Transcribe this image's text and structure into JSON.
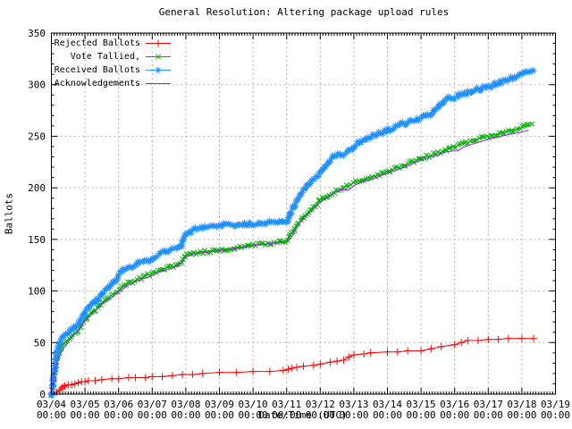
{
  "chart_data": {
    "type": "line",
    "title": "General Resolution: Altering package upload rules",
    "xlabel": "Date/Time (UTC)",
    "ylabel": "Ballots",
    "ylim": [
      0,
      350
    ],
    "y_major_ticks": [
      0,
      50,
      100,
      150,
      200,
      250,
      300,
      350
    ],
    "y_minor_step": 10,
    "x_days_range": [
      0,
      15
    ],
    "x_minor_ticks_per_day": 12,
    "grid": "dashed-gray",
    "legend_position": "top-left-inside",
    "colors": {
      "background": "#ffffff",
      "axis": "#000000",
      "grid": "#b0b0b0"
    },
    "x_ticks": [
      {
        "date": "03/04",
        "time": "00:00"
      },
      {
        "date": "03/05",
        "time": "00:00"
      },
      {
        "date": "03/06",
        "time": "00:00"
      },
      {
        "date": "03/07",
        "time": "00:00"
      },
      {
        "date": "03/08",
        "time": "00:00"
      },
      {
        "date": "03/09",
        "time": "00:00"
      },
      {
        "date": "03/10",
        "time": "00:00"
      },
      {
        "date": "03/11",
        "time": "00:00"
      },
      {
        "date": "03/12",
        "time": "00:00"
      },
      {
        "date": "03/13",
        "time": "00:00"
      },
      {
        "date": "03/14",
        "time": "00:00"
      },
      {
        "date": "03/15",
        "time": "00:00"
      },
      {
        "date": "03/16",
        "time": "00:00"
      },
      {
        "date": "03/17",
        "time": "00:00"
      },
      {
        "date": "03/18",
        "time": "00:00"
      },
      {
        "date": "03/19",
        "time": "00:00"
      }
    ],
    "series": [
      {
        "name": "Rejected Ballots",
        "color": "#ff0000",
        "marker": "plus",
        "dense_markers": false,
        "points": [
          [
            0,
            0
          ],
          [
            0.15,
            2
          ],
          [
            0.25,
            4
          ],
          [
            0.3,
            6
          ],
          [
            0.35,
            7
          ],
          [
            0.4,
            8
          ],
          [
            0.5,
            9
          ],
          [
            0.6,
            9
          ],
          [
            0.7,
            10
          ],
          [
            0.8,
            11
          ],
          [
            0.9,
            12
          ],
          [
            1.0,
            12
          ],
          [
            1.1,
            13
          ],
          [
            1.3,
            13
          ],
          [
            1.5,
            14
          ],
          [
            1.8,
            15
          ],
          [
            2.0,
            15
          ],
          [
            2.3,
            16
          ],
          [
            2.5,
            16
          ],
          [
            2.8,
            16
          ],
          [
            3.0,
            17
          ],
          [
            3.3,
            17
          ],
          [
            3.6,
            18
          ],
          [
            3.9,
            19
          ],
          [
            4.2,
            19
          ],
          [
            4.5,
            20
          ],
          [
            5.0,
            21
          ],
          [
            5.5,
            21
          ],
          [
            6.0,
            22
          ],
          [
            6.5,
            22
          ],
          [
            6.9,
            23
          ],
          [
            7.05,
            24
          ],
          [
            7.15,
            25
          ],
          [
            7.3,
            26
          ],
          [
            7.5,
            27
          ],
          [
            7.8,
            28
          ],
          [
            8.0,
            29
          ],
          [
            8.3,
            31
          ],
          [
            8.5,
            32
          ],
          [
            8.7,
            33
          ],
          [
            8.85,
            36
          ],
          [
            9.0,
            38
          ],
          [
            9.3,
            39
          ],
          [
            9.5,
            40
          ],
          [
            10.0,
            41
          ],
          [
            10.3,
            41
          ],
          [
            10.6,
            42
          ],
          [
            11.0,
            42
          ],
          [
            11.3,
            44
          ],
          [
            11.6,
            46
          ],
          [
            12.0,
            48
          ],
          [
            12.2,
            50
          ],
          [
            12.4,
            52
          ],
          [
            12.7,
            52
          ],
          [
            13.0,
            53
          ],
          [
            13.3,
            53
          ],
          [
            13.6,
            54
          ],
          [
            14.0,
            54
          ],
          [
            14.35,
            54
          ]
        ]
      },
      {
        "name": "Vote Tallied,",
        "color": "#00b000",
        "marker": "x",
        "dense_markers": true,
        "points": [
          [
            0,
            0
          ],
          [
            0.04,
            5
          ],
          [
            0.08,
            15
          ],
          [
            0.12,
            26
          ],
          [
            0.17,
            34
          ],
          [
            0.25,
            42
          ],
          [
            0.33,
            48
          ],
          [
            0.5,
            53
          ],
          [
            0.63,
            57
          ],
          [
            0.75,
            60
          ],
          [
            0.88,
            66
          ],
          [
            1.0,
            72
          ],
          [
            1.1,
            76
          ],
          [
            1.25,
            80
          ],
          [
            1.4,
            85
          ],
          [
            1.5,
            88
          ],
          [
            1.6,
            91
          ],
          [
            1.75,
            95
          ],
          [
            1.9,
            98
          ],
          [
            2.0,
            100
          ],
          [
            2.1,
            104
          ],
          [
            2.25,
            107
          ],
          [
            2.4,
            109
          ],
          [
            2.5,
            110
          ],
          [
            2.75,
            114
          ],
          [
            3.0,
            117
          ],
          [
            3.25,
            120
          ],
          [
            3.5,
            123
          ],
          [
            3.75,
            125
          ],
          [
            3.85,
            127
          ],
          [
            3.92,
            131
          ],
          [
            4.0,
            135
          ],
          [
            4.1,
            136
          ],
          [
            4.25,
            137
          ],
          [
            4.5,
            138
          ],
          [
            4.75,
            139
          ],
          [
            5.0,
            140
          ],
          [
            5.25,
            141
          ],
          [
            5.5,
            142
          ],
          [
            5.75,
            143
          ],
          [
            6.0,
            145
          ],
          [
            6.25,
            145
          ],
          [
            6.5,
            146
          ],
          [
            6.75,
            147
          ],
          [
            7.0,
            149
          ],
          [
            7.1,
            153
          ],
          [
            7.2,
            158
          ],
          [
            7.3,
            164
          ],
          [
            7.45,
            170
          ],
          [
            7.6,
            175
          ],
          [
            7.8,
            181
          ],
          [
            8.0,
            188
          ],
          [
            8.2,
            192
          ],
          [
            8.35,
            195
          ],
          [
            8.5,
            197
          ],
          [
            8.75,
            201
          ],
          [
            9.0,
            205
          ],
          [
            9.25,
            208
          ],
          [
            9.5,
            210
          ],
          [
            9.75,
            213
          ],
          [
            10.0,
            216
          ],
          [
            10.25,
            219
          ],
          [
            10.5,
            222
          ],
          [
            10.75,
            225
          ],
          [
            11.0,
            229
          ],
          [
            11.25,
            231
          ],
          [
            11.5,
            233
          ],
          [
            11.7,
            236
          ],
          [
            11.85,
            239
          ],
          [
            12.0,
            240
          ],
          [
            12.25,
            243
          ],
          [
            12.5,
            245
          ],
          [
            12.75,
            248
          ],
          [
            13.0,
            250
          ],
          [
            13.25,
            252
          ],
          [
            13.5,
            254
          ],
          [
            13.75,
            256
          ],
          [
            14.0,
            258
          ],
          [
            14.15,
            260
          ],
          [
            14.3,
            261
          ]
        ]
      },
      {
        "name": "Received Ballots",
        "color": "#1e90ff",
        "marker": "asterisk",
        "dense_markers": true,
        "points": [
          [
            0,
            0
          ],
          [
            0.04,
            8
          ],
          [
            0.08,
            22
          ],
          [
            0.12,
            34
          ],
          [
            0.17,
            42
          ],
          [
            0.25,
            50
          ],
          [
            0.33,
            55
          ],
          [
            0.5,
            60
          ],
          [
            0.63,
            64
          ],
          [
            0.75,
            67
          ],
          [
            0.88,
            72
          ],
          [
            1.0,
            80
          ],
          [
            1.1,
            84
          ],
          [
            1.25,
            88
          ],
          [
            1.4,
            93
          ],
          [
            1.5,
            97
          ],
          [
            1.6,
            100
          ],
          [
            1.75,
            105
          ],
          [
            1.9,
            110
          ],
          [
            2.0,
            115
          ],
          [
            2.1,
            119
          ],
          [
            2.25,
            122
          ],
          [
            2.4,
            124
          ],
          [
            2.5,
            126
          ],
          [
            2.75,
            129
          ],
          [
            3.0,
            131
          ],
          [
            3.1,
            133
          ],
          [
            3.25,
            136
          ],
          [
            3.4,
            138
          ],
          [
            3.5,
            139
          ],
          [
            3.75,
            141
          ],
          [
            3.85,
            143
          ],
          [
            3.92,
            150
          ],
          [
            4.0,
            155
          ],
          [
            4.1,
            157
          ],
          [
            4.25,
            159
          ],
          [
            4.5,
            161
          ],
          [
            4.75,
            162
          ],
          [
            5.0,
            163
          ],
          [
            5.25,
            164
          ],
          [
            5.5,
            164
          ],
          [
            5.75,
            165
          ],
          [
            6.0,
            165
          ],
          [
            6.25,
            166
          ],
          [
            6.5,
            167
          ],
          [
            6.75,
            167
          ],
          [
            6.9,
            166
          ],
          [
            7.0,
            166
          ],
          [
            7.05,
            170
          ],
          [
            7.15,
            177
          ],
          [
            7.25,
            184
          ],
          [
            7.4,
            192
          ],
          [
            7.5,
            197
          ],
          [
            7.65,
            203
          ],
          [
            7.8,
            208
          ],
          [
            8.0,
            214
          ],
          [
            8.1,
            219
          ],
          [
            8.25,
            225
          ],
          [
            8.4,
            230
          ],
          [
            8.5,
            232
          ],
          [
            8.6,
            233
          ],
          [
            8.75,
            233
          ],
          [
            8.9,
            236
          ],
          [
            9.0,
            240
          ],
          [
            9.15,
            244
          ],
          [
            9.3,
            247
          ],
          [
            9.5,
            250
          ],
          [
            9.75,
            253
          ],
          [
            10.0,
            256
          ],
          [
            10.25,
            259
          ],
          [
            10.5,
            262
          ],
          [
            10.75,
            265
          ],
          [
            11.0,
            268
          ],
          [
            11.25,
            271
          ],
          [
            11.4,
            274
          ],
          [
            11.5,
            278
          ],
          [
            11.6,
            283
          ],
          [
            11.75,
            286
          ],
          [
            12.0,
            288
          ],
          [
            12.25,
            291
          ],
          [
            12.5,
            293
          ],
          [
            12.75,
            296
          ],
          [
            13.0,
            298
          ],
          [
            13.25,
            301
          ],
          [
            13.5,
            304
          ],
          [
            13.75,
            307
          ],
          [
            14.0,
            310
          ],
          [
            14.2,
            312
          ],
          [
            14.35,
            313
          ]
        ]
      },
      {
        "name": "Acknowledgements",
        "color": "#a020f0",
        "marker": "none",
        "dense_markers": false,
        "points": [
          [
            0,
            0
          ],
          [
            0.06,
            10
          ],
          [
            0.12,
            24
          ],
          [
            0.2,
            33
          ],
          [
            0.3,
            41
          ],
          [
            0.5,
            51
          ],
          [
            0.75,
            60
          ],
          [
            1.0,
            71
          ],
          [
            1.25,
            79
          ],
          [
            1.5,
            87
          ],
          [
            1.75,
            93
          ],
          [
            2.0,
            99
          ],
          [
            2.25,
            105
          ],
          [
            2.5,
            109
          ],
          [
            2.75,
            112
          ],
          [
            3.0,
            115
          ],
          [
            3.25,
            119
          ],
          [
            3.5,
            121
          ],
          [
            3.75,
            124
          ],
          [
            3.92,
            129
          ],
          [
            4.0,
            133
          ],
          [
            4.25,
            136
          ],
          [
            4.5,
            137
          ],
          [
            5.0,
            139
          ],
          [
            5.5,
            141
          ],
          [
            6.0,
            144
          ],
          [
            6.5,
            146
          ],
          [
            7.0,
            147
          ],
          [
            7.15,
            152
          ],
          [
            7.3,
            162
          ],
          [
            7.5,
            170
          ],
          [
            7.75,
            178
          ],
          [
            8.0,
            186
          ],
          [
            8.25,
            191
          ],
          [
            8.5,
            197
          ],
          [
            8.6,
            198
          ],
          [
            8.85,
            198
          ],
          [
            9.0,
            202
          ],
          [
            9.25,
            206
          ],
          [
            9.5,
            208
          ],
          [
            9.75,
            211
          ],
          [
            10.0,
            214
          ],
          [
            10.5,
            220
          ],
          [
            11.0,
            227
          ],
          [
            11.3,
            230
          ],
          [
            11.5,
            231
          ],
          [
            11.7,
            235
          ],
          [
            12.1,
            236
          ],
          [
            12.3,
            240
          ],
          [
            12.5,
            242
          ],
          [
            13.0,
            247
          ],
          [
            13.5,
            251
          ],
          [
            14.0,
            254
          ],
          [
            14.2,
            256
          ]
        ]
      }
    ]
  }
}
